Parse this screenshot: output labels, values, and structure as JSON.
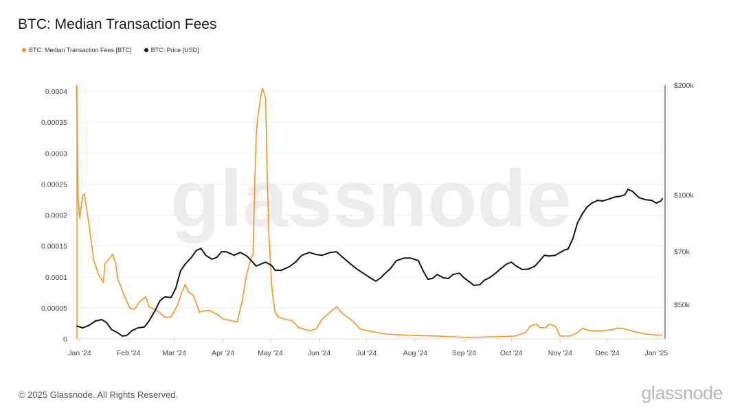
{
  "title": "BTC: Median Transaction Fees",
  "footer": "© 2025 Glassnode. All Rights Reserved.",
  "logo": "glassnode",
  "watermark": "glassnode",
  "chart_data": {
    "type": "line",
    "title": "BTC: Median Transaction Fees",
    "x_unit": "days since 2024-01-01",
    "x_ticks": [
      {
        "day": 0,
        "label": "Jan '24"
      },
      {
        "day": 31,
        "label": "Feb '24"
      },
      {
        "day": 60,
        "label": "Mar '24"
      },
      {
        "day": 91,
        "label": "Apr '24"
      },
      {
        "day": 121,
        "label": "May '24"
      },
      {
        "day": 152,
        "label": "Jun '24"
      },
      {
        "day": 182,
        "label": "Jul '24"
      },
      {
        "day": 213,
        "label": "Aug '24"
      },
      {
        "day": 244,
        "label": "Sep '24"
      },
      {
        "day": 274,
        "label": "Oct '24"
      },
      {
        "day": 305,
        "label": "Nov '24"
      },
      {
        "day": 335,
        "label": "Dec '24"
      },
      {
        "day": 366,
        "label": "Jan '25"
      }
    ],
    "y_left": {
      "label": "BTC: Median Transaction Fees [BTC]",
      "range": [
        0,
        0.0004
      ],
      "scale": "linear",
      "ticks": [
        "0",
        "0.00005",
        "0.0001",
        "0.00015",
        "0.0002",
        "0.00025",
        "0.0003",
        "0.00035",
        "0.0004"
      ]
    },
    "y_right": {
      "label": "BTC: Price [USD]",
      "range": [
        40300,
        200000
      ],
      "scale": "log",
      "ticks": [
        {
          "value": 200000,
          "label": "$200k"
        },
        {
          "value": 100000,
          "label": "$100k"
        },
        {
          "value": 70000,
          "label": "$70k"
        },
        {
          "value": 50000,
          "label": "$50k"
        }
      ]
    },
    "legend": {
      "position": "top-left"
    },
    "grid": true,
    "series": [
      {
        "name": "BTC: Median Transaction Fees [BTC]",
        "color": "#f7931a",
        "axis": "left",
        "days": [
          -2,
          -1,
          0,
          2,
          3,
          6,
          9,
          12,
          15,
          16,
          19,
          21,
          23,
          24,
          28,
          32,
          35,
          38,
          42,
          44,
          50,
          54,
          58,
          62,
          65,
          67,
          69,
          72,
          76,
          79,
          82,
          87,
          91,
          95,
          100,
          103,
          106,
          109,
          110,
          111,
          112,
          113,
          115,
          116,
          118,
          119,
          120,
          122,
          124,
          126,
          130,
          135,
          139,
          146,
          150,
          154,
          159,
          163,
          166,
          170,
          174,
          178,
          185,
          194,
          202,
          211,
          228,
          246,
          263,
          276,
          283,
          286,
          290,
          292,
          296,
          298,
          302,
          305,
          311,
          316,
          319,
          324,
          333,
          342,
          346,
          353,
          359,
          370
        ],
        "values": [
          0.00041,
          0.000226,
          0.000195,
          0.000232,
          0.000234,
          0.000182,
          0.000126,
          0.000104,
          9.1e-05,
          0.000121,
          0.00013,
          0.000137,
          0.000121,
          9.86e-05,
          7.1e-05,
          4.9e-05,
          4.8e-05,
          6e-05,
          6.8e-05,
          5.2e-05,
          4.4e-05,
          3.5e-05,
          3.5e-05,
          5.4e-05,
          7.6e-05,
          8.8e-05,
          7.6e-05,
          7.1e-05,
          4.3e-05,
          4.5e-05,
          4.6e-05,
          4e-05,
          3.2e-05,
          3e-05,
          2.7e-05,
          6e-05,
          0.000104,
          0.000132,
          0.000135,
          0.000237,
          0.000326,
          0.000357,
          0.000392,
          0.000405,
          0.000389,
          0.00027,
          0.000171,
          8.2e-05,
          4.3e-05,
          3.5e-05,
          3.2e-05,
          2.9e-05,
          1.8e-05,
          1.3e-05,
          1.6e-05,
          3.2e-05,
          4.3e-05,
          5.2e-05,
          4.3e-05,
          3.5e-05,
          2.7e-05,
          1.6e-05,
          1.2e-05,
          7.8e-06,
          6.6e-06,
          5.5e-06,
          4.4e-06,
          2.2e-06,
          3.3e-06,
          4.4e-06,
          1e-05,
          2e-05,
          2.4e-05,
          1.8e-05,
          1.8e-05,
          2.4e-05,
          2e-05,
          4.4e-06,
          4.4e-06,
          1e-05,
          1.7e-05,
          1.3e-05,
          1.3e-05,
          1.7e-05,
          1.6e-05,
          1.1e-05,
          7.8e-06,
          5.5e-06
        ]
      },
      {
        "name": "BTC: Price [USD]",
        "color": "#111111",
        "axis": "right",
        "days": [
          -2,
          2,
          6,
          10,
          14,
          17,
          20,
          24,
          27,
          30,
          33,
          37,
          41,
          44,
          48,
          51,
          54,
          58,
          61,
          64,
          67,
          71,
          74,
          77,
          80,
          84,
          87,
          90,
          93,
          98,
          102,
          106,
          109,
          112,
          115,
          118,
          122,
          124,
          128,
          133,
          137,
          141,
          146,
          150,
          154,
          159,
          163,
          167,
          172,
          176,
          180,
          185,
          188,
          191,
          194,
          197,
          201,
          206,
          210,
          215,
          218,
          221,
          224,
          227,
          231,
          234,
          237,
          241,
          244,
          248,
          250,
          254,
          257,
          260,
          263,
          267,
          271,
          274,
          277,
          281,
          285,
          289,
          292,
          295,
          298,
          302,
          305,
          308,
          310,
          313,
          316,
          319,
          322,
          325,
          329,
          332,
          336,
          340,
          343,
          346,
          348,
          351,
          355,
          359,
          363,
          366,
          369,
          370
        ],
        "values": [
          43700,
          43200,
          43900,
          45100,
          45500,
          44700,
          42800,
          41900,
          41000,
          41200,
          42400,
          43200,
          43400,
          45100,
          48300,
          51300,
          52500,
          52300,
          55500,
          61900,
          64600,
          67400,
          70400,
          71300,
          68300,
          66600,
          67400,
          69800,
          69800,
          68300,
          69500,
          68000,
          66000,
          63800,
          64600,
          65400,
          64000,
          62100,
          62100,
          63500,
          65400,
          68300,
          69500,
          68600,
          68300,
          69500,
          69800,
          67400,
          64600,
          62600,
          61000,
          59000,
          58000,
          59200,
          61000,
          62600,
          66000,
          67100,
          67100,
          66000,
          61900,
          58700,
          59000,
          60500,
          59200,
          59000,
          60500,
          61000,
          59200,
          57500,
          56500,
          56700,
          58400,
          59200,
          60500,
          62600,
          64600,
          65400,
          63800,
          62400,
          62600,
          63800,
          66000,
          68300,
          68000,
          68300,
          69500,
          70700,
          71000,
          75800,
          83800,
          88600,
          92500,
          94900,
          96600,
          96200,
          97400,
          98700,
          99100,
          100000,
          103500,
          102200,
          98300,
          97000,
          96600,
          94900,
          96200,
          97900
        ]
      }
    ]
  }
}
